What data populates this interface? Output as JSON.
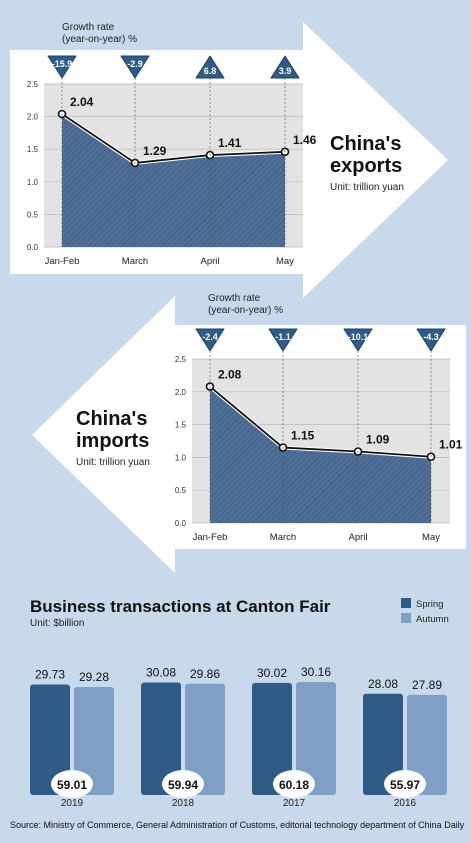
{
  "chart_data": [
    {
      "type": "area",
      "title": "China's exports",
      "unit_label": "Unit: trillion yuan",
      "growth_label_line1": "Growth rate",
      "growth_label_line2": "(year-on-year) %",
      "categories": [
        "Jan-Feb",
        "March",
        "April",
        "May"
      ],
      "values": [
        2.04,
        1.29,
        1.41,
        1.46
      ],
      "value_labels": [
        "2.04",
        "1.29",
        "1.41",
        "1.46"
      ],
      "growth": [
        -15.9,
        -2.9,
        6.8,
        3.9
      ],
      "growth_labels": [
        "-15.9",
        "-2.9",
        "6.8",
        "3.9"
      ],
      "ylim": [
        0,
        2.5
      ],
      "yticks": [
        "0.0",
        "0.5",
        "1.0",
        "1.5",
        "2.0",
        "2.5"
      ],
      "grid": true
    },
    {
      "type": "area",
      "title": "China's imports",
      "unit_label": "Unit: trillion yuan",
      "growth_label_line1": "Growth rate",
      "growth_label_line2": "(year-on-year) %",
      "categories": [
        "Jan-Feb",
        "March",
        "April",
        "May"
      ],
      "values": [
        2.08,
        1.15,
        1.09,
        1.01
      ],
      "value_labels": [
        "2.08",
        "1.15",
        "1.09",
        "1.01"
      ],
      "growth": [
        -2.4,
        -1.1,
        -10.1,
        -4.3
      ],
      "growth_labels": [
        "-2.4",
        "-1.1",
        "-10.1",
        "-4.3"
      ],
      "ylim": [
        0,
        2.5
      ],
      "yticks": [
        "0.0",
        "0.5",
        "1.0",
        "1.5",
        "2.0",
        "2.5"
      ],
      "grid": true
    },
    {
      "type": "bar",
      "title": "Business transactions at Canton Fair",
      "unit_label": "Unit: $billion",
      "categories": [
        "2019",
        "2018",
        "2017",
        "2016"
      ],
      "series": [
        {
          "name": "Spring",
          "values": [
            29.73,
            30.08,
            30.02,
            28.08
          ],
          "value_labels": [
            "29.73",
            "30.08",
            "30.02",
            "28.08"
          ]
        },
        {
          "name": "Autumn",
          "values": [
            29.28,
            29.86,
            30.16,
            27.89
          ],
          "value_labels": [
            "29.28",
            "29.86",
            "30.16",
            "27.89"
          ]
        }
      ],
      "totals": [
        "59.01",
        "59.94",
        "60.18",
        "55.97"
      ],
      "legend_position": "top-right"
    }
  ],
  "source_text": "Source: Ministry of Commerce, General Administration of Customs, editorial technology department of China Daily",
  "colors": {
    "background": "#c8d9ec",
    "area_fill": "#4d6d95",
    "dark_blue": "#2f5b86",
    "light_blue": "#7f9fc4",
    "plot_bg": "#e3e3e3",
    "arrow_fill": "#ffffff"
  }
}
